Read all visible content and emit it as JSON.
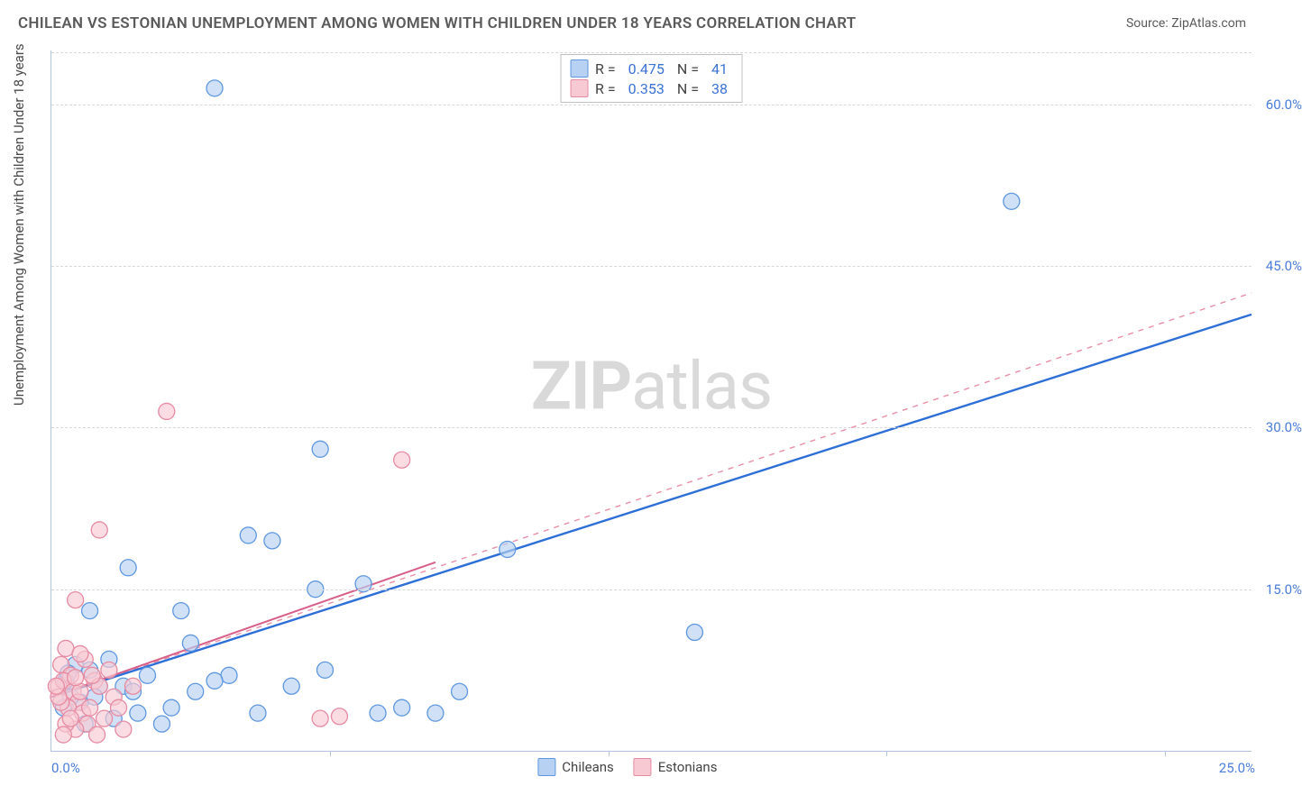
{
  "title": "CHILEAN VS ESTONIAN UNEMPLOYMENT AMONG WOMEN WITH CHILDREN UNDER 18 YEARS CORRELATION CHART",
  "source": "Source: ZipAtlas.com",
  "watermark_a": "ZIP",
  "watermark_b": "atlas",
  "ylabel": "Unemployment Among Women with Children Under 18 years",
  "colors": {
    "blue_fill": "#b7d1f3",
    "blue_stroke": "#5e97e0",
    "pink_fill": "#f7c9d3",
    "pink_stroke": "#e68ba2",
    "line_blue": "#2d6fd6",
    "line_pink_dash": "#e88fa5",
    "line_pink_solid": "#d85f88",
    "grid": "#d8d8d8",
    "axis": "#b0c4de",
    "tick_text": "#4a7dd8",
    "title_text": "#5a5a5a"
  },
  "chart": {
    "type": "scatter",
    "xlim": [
      0,
      25
    ],
    "ylim": [
      0,
      65
    ],
    "yticks": [
      15,
      30,
      45,
      60
    ],
    "ytick_labels": [
      "15.0%",
      "30.0%",
      "45.0%",
      "60.0%"
    ],
    "xtick_origin": "0.0%",
    "xtick_end": "25.0%",
    "x_minor_ticks": [
      5.8,
      11.6,
      17.4,
      23.2
    ],
    "marker_radius": 9,
    "marker_opacity": 0.65,
    "line_width_blue": 2.4,
    "line_width_pink_solid": 2.0
  },
  "stats": [
    {
      "series": "blue",
      "R_label": "R =",
      "R": "0.475",
      "N_label": "N =",
      "N": "41"
    },
    {
      "series": "pink",
      "R_label": "R =",
      "R": "0.353",
      "N_label": "N =",
      "N": "38"
    }
  ],
  "series_legend": [
    {
      "label": "Chileans",
      "color": "blue"
    },
    {
      "label": "Estonians",
      "color": "pink"
    }
  ],
  "series": {
    "blue": {
      "points": [
        [
          3.4,
          61.5
        ],
        [
          20.0,
          51.0
        ],
        [
          5.6,
          28.0
        ],
        [
          1.6,
          17.0
        ],
        [
          4.1,
          20.0
        ],
        [
          4.6,
          19.5
        ],
        [
          0.8,
          13.0
        ],
        [
          2.7,
          13.0
        ],
        [
          2.9,
          10.0
        ],
        [
          5.5,
          15.0
        ],
        [
          6.5,
          15.5
        ],
        [
          9.5,
          18.7
        ],
        [
          13.4,
          11.0
        ],
        [
          8.5,
          5.5
        ],
        [
          8.0,
          3.5
        ],
        [
          7.3,
          4.0
        ],
        [
          6.8,
          3.5
        ],
        [
          5.7,
          7.5
        ],
        [
          5.0,
          6.0
        ],
        [
          3.7,
          7.0
        ],
        [
          4.3,
          3.5
        ],
        [
          2.5,
          4.0
        ],
        [
          2.0,
          7.0
        ],
        [
          2.3,
          2.5
        ],
        [
          1.5,
          6.0
        ],
        [
          1.8,
          3.5
        ],
        [
          1.2,
          8.5
        ],
        [
          1.0,
          6.0
        ],
        [
          0.8,
          7.5
        ],
        [
          0.6,
          4.5
        ],
        [
          0.5,
          8.0
        ],
        [
          0.4,
          5.0
        ],
        [
          0.3,
          6.5
        ],
        [
          0.25,
          4.0
        ],
        [
          0.7,
          2.5
        ],
        [
          0.9,
          5.0
        ],
        [
          1.3,
          3.0
        ],
        [
          1.7,
          5.5
        ],
        [
          3.0,
          5.5
        ],
        [
          3.4,
          6.5
        ],
        [
          0.35,
          7.2
        ]
      ],
      "trend": {
        "x1": 0,
        "y1": 5.0,
        "x2": 25,
        "y2": 40.5
      }
    },
    "pink": {
      "points": [
        [
          2.4,
          31.5
        ],
        [
          7.3,
          27.0
        ],
        [
          1.0,
          20.5
        ],
        [
          0.5,
          14.0
        ],
        [
          0.3,
          9.5
        ],
        [
          0.2,
          8.0
        ],
        [
          0.7,
          8.5
        ],
        [
          0.4,
          7.0
        ],
        [
          0.6,
          9.0
        ],
        [
          0.15,
          6.0
        ],
        [
          0.25,
          6.5
        ],
        [
          0.45,
          5.5
        ],
        [
          0.55,
          4.5
        ],
        [
          0.35,
          4.0
        ],
        [
          0.65,
          3.5
        ],
        [
          0.8,
          4.0
        ],
        [
          0.9,
          6.5
        ],
        [
          1.1,
          3.0
        ],
        [
          1.3,
          5.0
        ],
        [
          1.5,
          2.0
        ],
        [
          1.7,
          6.0
        ],
        [
          1.2,
          7.5
        ],
        [
          0.75,
          2.5
        ],
        [
          0.95,
          1.5
        ],
        [
          0.5,
          2.0
        ],
        [
          0.3,
          2.5
        ],
        [
          0.4,
          3.0
        ],
        [
          0.2,
          4.5
        ],
        [
          0.15,
          5.0
        ],
        [
          0.1,
          6.0
        ],
        [
          0.25,
          1.5
        ],
        [
          1.0,
          6.0
        ],
        [
          1.4,
          4.0
        ],
        [
          5.6,
          3.0
        ],
        [
          6.0,
          3.2
        ],
        [
          0.6,
          5.5
        ],
        [
          0.85,
          7.0
        ],
        [
          0.5,
          6.8
        ]
      ],
      "trend_solid": {
        "x1": 0,
        "y1": 5.0,
        "x2": 8.0,
        "y2": 17.5
      },
      "trend_dash": {
        "x1": 0,
        "y1": 5.0,
        "x2": 25,
        "y2": 42.5
      }
    }
  }
}
